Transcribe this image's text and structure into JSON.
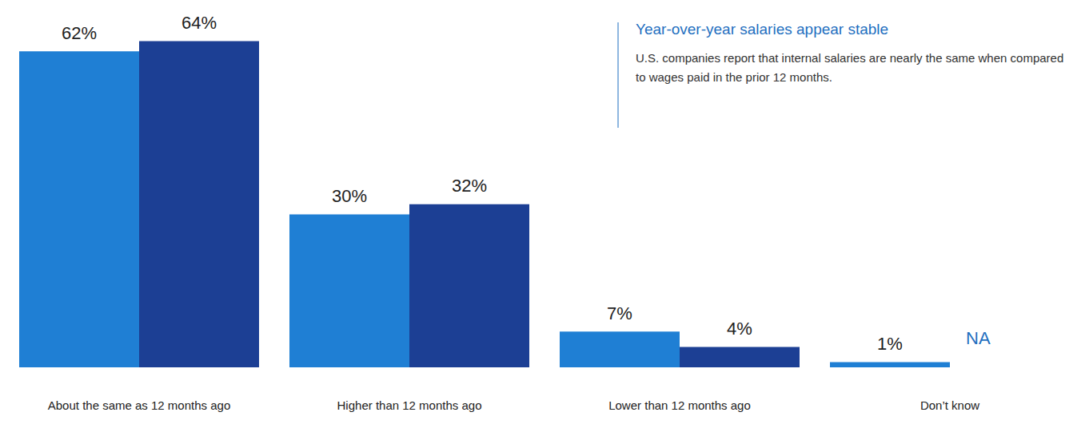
{
  "chart_data": {
    "type": "bar",
    "title": "Year-over-year salaries appear stable",
    "subtitle": "U.S. companies report that internal salaries are nearly the same when compared to wages paid in the prior 12 months.",
    "categories": [
      "About the same as 12 months ago",
      "Higher than 12 months ago",
      "Lower than 12 months ago",
      "Don’t know"
    ],
    "series": [
      {
        "color": "#1f7fd4",
        "values": [
          62,
          30,
          7,
          1
        ],
        "value_labels": [
          "62%",
          "30%",
          "7%",
          "1%"
        ]
      },
      {
        "color": "#1c3f94",
        "values": [
          64,
          32,
          4,
          null
        ],
        "value_labels": [
          "64%",
          "32%",
          "4%",
          "NA"
        ]
      }
    ],
    "ylim": [
      0,
      65
    ],
    "grid": false,
    "data_labels": true,
    "tick_labels": "x"
  }
}
